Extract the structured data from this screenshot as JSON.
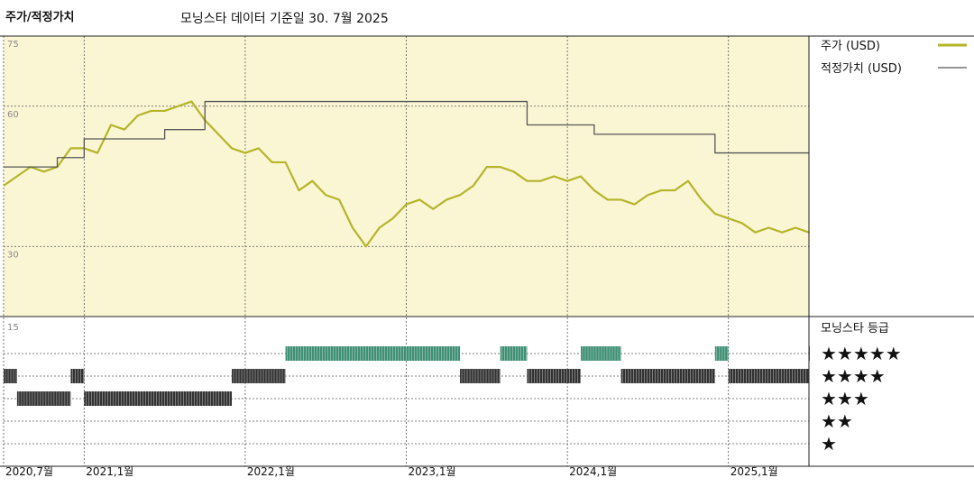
{
  "title": "주가/적정가치",
  "subtitle": "모닝스타 데이터 기준일 30. 7월 2025",
  "legend": {
    "price_label": "주가 (USD)",
    "fair_value_label": "적정가치 (USD)",
    "rating_title": "모닝스타 등급",
    "stars": [
      "★★★★★",
      "★★★★",
      "★★★",
      "★★",
      "★"
    ]
  },
  "colors": {
    "price": "#b5b42a",
    "fair_value": "#555555",
    "panel_bg": "#faf6d4",
    "rating_5": "#3e8f73",
    "rating_low": "#333333"
  },
  "chart_data": [
    {
      "type": "line",
      "ylim": [
        15,
        75
      ],
      "yticks": [
        75,
        60,
        30
      ],
      "xticks": [
        {
          "label": "2020,7월",
          "x": "2020-07"
        },
        {
          "label": "2021,1월",
          "x": "2021-01"
        },
        {
          "label": "2022,1월",
          "x": "2022-01"
        },
        {
          "label": "2023,1월",
          "x": "2023-01"
        },
        {
          "label": "2024,1월",
          "x": "2024-01"
        },
        {
          "label": "2025,1월",
          "x": "2025-01"
        }
      ],
      "x_end": "2025-07",
      "series": [
        {
          "name": "주가 (USD)",
          "step": false,
          "points": [
            [
              "2020-07",
              43
            ],
            [
              "2020-08",
              45
            ],
            [
              "2020-09",
              47
            ],
            [
              "2020-10",
              46
            ],
            [
              "2020-11",
              47
            ],
            [
              "2020-12",
              51
            ],
            [
              "2021-01",
              51
            ],
            [
              "2021-02",
              50
            ],
            [
              "2021-03",
              56
            ],
            [
              "2021-04",
              55
            ],
            [
              "2021-05",
              58
            ],
            [
              "2021-06",
              59
            ],
            [
              "2021-07",
              59
            ],
            [
              "2021-08",
              60
            ],
            [
              "2021-09",
              61
            ],
            [
              "2021-10",
              57
            ],
            [
              "2021-11",
              54
            ],
            [
              "2021-12",
              51
            ],
            [
              "2022-01",
              50
            ],
            [
              "2022-02",
              51
            ],
            [
              "2022-03",
              48
            ],
            [
              "2022-04",
              48
            ],
            [
              "2022-05",
              42
            ],
            [
              "2022-06",
              44
            ],
            [
              "2022-07",
              41
            ],
            [
              "2022-08",
              40
            ],
            [
              "2022-09",
              34
            ],
            [
              "2022-10",
              30
            ],
            [
              "2022-11",
              34
            ],
            [
              "2022-12",
              36
            ],
            [
              "2023-01",
              39
            ],
            [
              "2023-02",
              40
            ],
            [
              "2023-03",
              38
            ],
            [
              "2023-04",
              40
            ],
            [
              "2023-05",
              41
            ],
            [
              "2023-06",
              43
            ],
            [
              "2023-07",
              47
            ],
            [
              "2023-08",
              47
            ],
            [
              "2023-09",
              46
            ],
            [
              "2023-10",
              44
            ],
            [
              "2023-11",
              44
            ],
            [
              "2023-12",
              45
            ],
            [
              "2024-01",
              44
            ],
            [
              "2024-02",
              45
            ],
            [
              "2024-03",
              42
            ],
            [
              "2024-04",
              40
            ],
            [
              "2024-05",
              40
            ],
            [
              "2024-06",
              39
            ],
            [
              "2024-07",
              41
            ],
            [
              "2024-08",
              42
            ],
            [
              "2024-09",
              42
            ],
            [
              "2024-10",
              44
            ],
            [
              "2024-11",
              40
            ],
            [
              "2024-12",
              37
            ],
            [
              "2025-01",
              36
            ],
            [
              "2025-02",
              35
            ],
            [
              "2025-03",
              33
            ],
            [
              "2025-04",
              34
            ],
            [
              "2025-05",
              33
            ],
            [
              "2025-06",
              34
            ],
            [
              "2025-07",
              33
            ]
          ]
        },
        {
          "name": "적정가치 (USD)",
          "step": true,
          "points": [
            [
              "2020-07",
              47
            ],
            [
              "2020-11",
              49
            ],
            [
              "2021-01",
              53
            ],
            [
              "2021-07",
              55
            ],
            [
              "2021-10",
              61
            ],
            [
              "2023-10",
              56
            ],
            [
              "2024-03",
              54
            ],
            [
              "2024-12",
              50
            ],
            [
              "2025-07",
              50
            ]
          ]
        }
      ]
    },
    {
      "type": "heatmap",
      "ylabel_top": "15",
      "rows": [
        "5",
        "4",
        "3",
        "2",
        "1"
      ],
      "segments": [
        {
          "rating": 4,
          "start": "2020-07",
          "end": "2020-08"
        },
        {
          "rating": 3,
          "start": "2020-08",
          "end": "2020-12"
        },
        {
          "rating": 4,
          "start": "2020-12",
          "end": "2021-01"
        },
        {
          "rating": 3,
          "start": "2021-01",
          "end": "2021-12"
        },
        {
          "rating": 4,
          "start": "2021-12",
          "end": "2022-04"
        },
        {
          "rating": 5,
          "start": "2022-04",
          "end": "2023-05"
        },
        {
          "rating": 4,
          "start": "2023-05",
          "end": "2023-08"
        },
        {
          "rating": 5,
          "start": "2023-08",
          "end": "2023-10"
        },
        {
          "rating": 4,
          "start": "2023-10",
          "end": "2024-02"
        },
        {
          "rating": 5,
          "start": "2024-02",
          "end": "2024-05"
        },
        {
          "rating": 4,
          "start": "2024-05",
          "end": "2024-12"
        },
        {
          "rating": 5,
          "start": "2024-12",
          "end": "2025-01"
        },
        {
          "rating": 4,
          "start": "2025-01",
          "end": "2025-07"
        },
        {
          "rating": 5,
          "start": "2025-07",
          "end": "2025-08"
        }
      ]
    }
  ]
}
